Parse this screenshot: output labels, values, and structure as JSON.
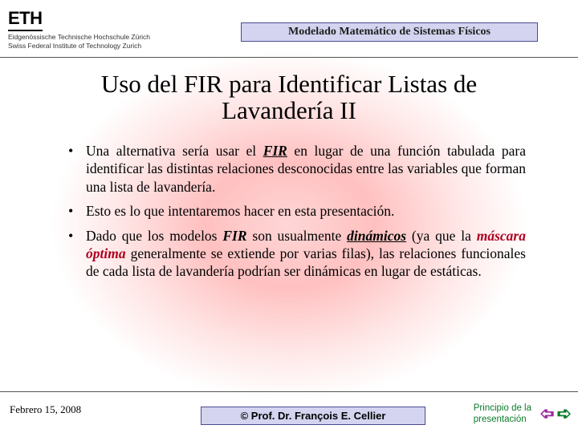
{
  "header": {
    "logo_text": "ETH",
    "logo_sub1": "Eidgenössische Technische Hochschule Zürich",
    "logo_sub2": "Swiss Federal Institute of Technology Zurich",
    "course_title": "Modelado Matemático de Sistemas Físicos"
  },
  "slide": {
    "title_line1": "Uso del FIR para Identificar Listas de",
    "title_line2": "Lavandería II"
  },
  "bullets": {
    "b1_pre": "Una alternativa sería usar el ",
    "b1_fir": "FIR",
    "b1_post": " en lugar de una función tabulada para identificar las distintas relaciones desconocidas entre las variables que forman una lista de lavandería.",
    "b2": "Esto es lo que intentaremos hacer en esta presentación.",
    "b3_a": "Dado que los modelos ",
    "b3_fir": "FIR",
    "b3_b": " son usualmente ",
    "b3_din": "dinámicos",
    "b3_c": " (ya que la ",
    "b3_mask": "máscara óptima",
    "b3_d": " generalmente se extiende por varias filas), las relaciones funcionales de cada lista de lavandería podrían ser dinámicas en lugar de estáticas."
  },
  "footer": {
    "date": "Febrero 15, 2008",
    "author": "© Prof. Dr. François E. Cellier",
    "nav_label_line1": "Principio de la",
    "nav_label_line2": "presentación"
  }
}
